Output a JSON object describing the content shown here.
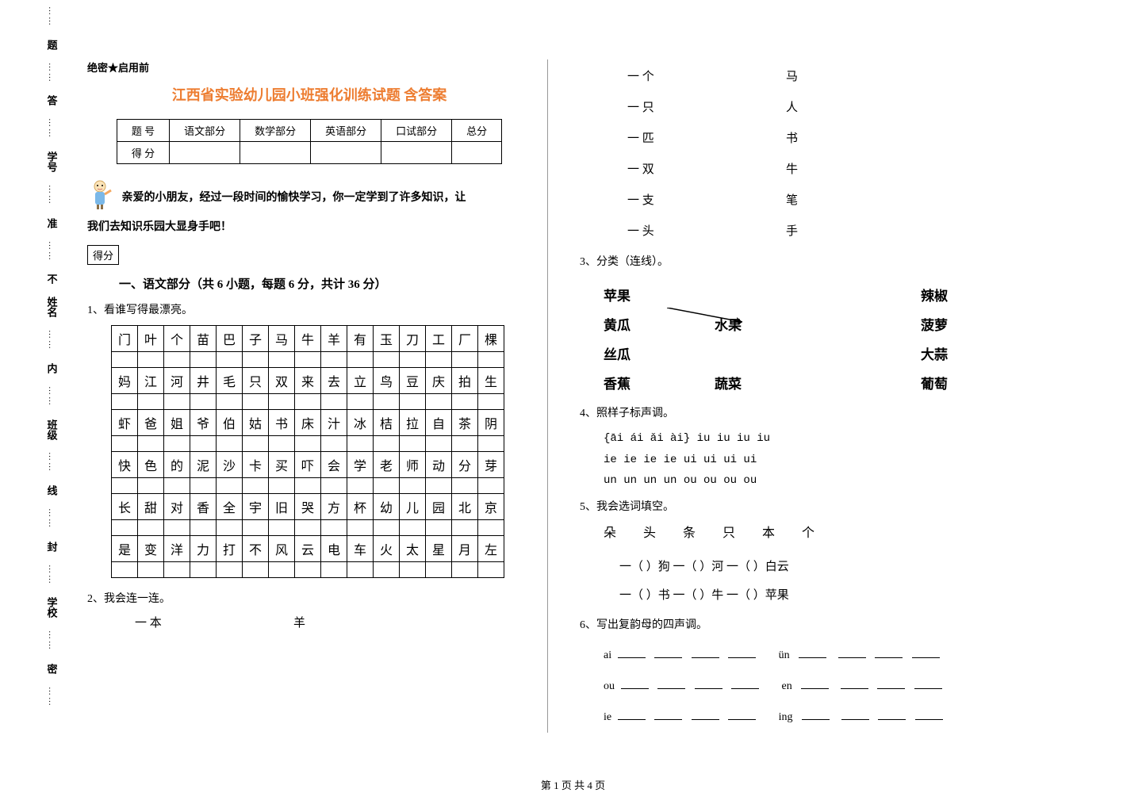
{
  "side": {
    "items": [
      "题",
      "答",
      "学号",
      "准",
      "不",
      "姓名",
      "内",
      "班级",
      "线",
      "封",
      "学校",
      "密"
    ]
  },
  "header": {
    "mark": "绝密★启用前",
    "title": "江西省实验幼儿园小班强化训练试题 含答案"
  },
  "score_table": {
    "headers": [
      "题    号",
      "语文部分",
      "数学部分",
      "英语部分",
      "口试部分",
      "总分"
    ],
    "row_label": "得    分"
  },
  "intro": {
    "line1": "亲爱的小朋友，经过一段时间的愉快学习，你一定学到了许多知识，让",
    "line2": "我们去知识乐园大显身手吧！",
    "score_label": "得分"
  },
  "section1": {
    "title": "一、语文部分（共 6 小题，每题 6 分，共计 36 分）"
  },
  "q1": {
    "label": "1、看谁写得最漂亮。",
    "rows": [
      [
        "门",
        "叶",
        "个",
        "苗",
        "巴",
        "子",
        "马",
        "牛",
        "羊",
        "有",
        "玉",
        "刀",
        "工",
        "厂",
        "棵"
      ],
      [
        "妈",
        "江",
        "河",
        "井",
        "毛",
        "只",
        "双",
        "来",
        "去",
        "立",
        "鸟",
        "豆",
        "庆",
        "拍",
        "生"
      ],
      [
        "虾",
        "爸",
        "姐",
        "爷",
        "伯",
        "姑",
        "书",
        "床",
        "汁",
        "冰",
        "桔",
        "拉",
        "自",
        "茶",
        "阴"
      ],
      [
        "快",
        "色",
        "的",
        "泥",
        "沙",
        "卡",
        "买",
        "吓",
        "会",
        "学",
        "老",
        "师",
        "动",
        "分",
        "芽"
      ],
      [
        "长",
        "甜",
        "对",
        "香",
        "全",
        "宇",
        "旧",
        "哭",
        "方",
        "杯",
        "幼",
        "儿",
        "园",
        "北",
        "京"
      ],
      [
        "是",
        "变",
        "洋",
        "力",
        "打",
        "不",
        "风",
        "云",
        "电",
        "车",
        "火",
        "太",
        "星",
        "月",
        "左"
      ]
    ]
  },
  "q2": {
    "label": "2、我会连一连。",
    "first_left": "一  本",
    "first_right": "羊",
    "pairs": [
      {
        "left": "一  个",
        "right": "马"
      },
      {
        "left": "一  只",
        "right": "人"
      },
      {
        "left": "一  匹",
        "right": "书"
      },
      {
        "left": "一  双",
        "right": "牛"
      },
      {
        "left": "一  支",
        "right": "笔"
      },
      {
        "left": "一  头",
        "right": "手"
      }
    ]
  },
  "q3": {
    "label": "3、分类（连线）。",
    "left_items": [
      "苹果",
      "黄瓜",
      "丝瓜",
      "香蕉"
    ],
    "mid_items": [
      "",
      "水果",
      "",
      "蔬菜"
    ],
    "right_items": [
      "辣椒",
      "菠萝",
      "大蒜",
      "葡萄"
    ]
  },
  "q4": {
    "label": "4、照样子标声调。",
    "lines": [
      "{āi   ái   ǎi   ài}       iu   iu   iu   iu",
      " ie   ie   ie   ie       ui   ui   ui   ui",
      " un   un   un   un       ou   ou   ou   ou"
    ]
  },
  "q5": {
    "label": "5、我会选词填空。",
    "options": "朵 头 条 只 本 个",
    "lines": [
      "一（    ）狗    一（    ）河    一（    ）白云",
      "一（    ）书    一（    ）牛    一（    ）苹果"
    ]
  },
  "q6": {
    "label": "6、写出复韵母的四声调。",
    "items": [
      {
        "prefix": "ai",
        "prefix2": "ün"
      },
      {
        "prefix": "ou",
        "prefix2": "en"
      },
      {
        "prefix": "ie",
        "prefix2": "ing"
      }
    ]
  },
  "footer": "第 1 页 共 4 页"
}
